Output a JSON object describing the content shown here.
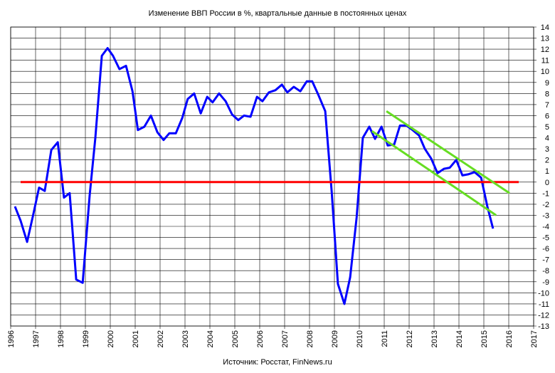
{
  "chart_data": {
    "type": "line",
    "title": "Изменение ВВП России в %, квартальные данные в постоянных ценах",
    "source": "Источник: Росстат, FinNews.ru",
    "xlim": [
      1996,
      2017
    ],
    "xticks": [
      1996,
      1997,
      1998,
      1999,
      2000,
      2001,
      2002,
      2003,
      2004,
      2005,
      2006,
      2007,
      2008,
      2009,
      2010,
      2011,
      2012,
      2013,
      2014,
      2015,
      2016,
      2017
    ],
    "ylim": [
      -13,
      14
    ],
    "yticks": [
      -13,
      -12,
      -11,
      -10,
      -9,
      -8,
      -7,
      -6,
      -5,
      -4,
      -3,
      -2,
      -1,
      0,
      1,
      2,
      3,
      4,
      5,
      6,
      7,
      8,
      9,
      10,
      11,
      12,
      13,
      14
    ],
    "grid": true,
    "y_axis_side": "right",
    "series": [
      {
        "color": "#0000ff",
        "x": [
          1996.17,
          1996.4,
          1996.66,
          1996.9,
          1997.14,
          1997.37,
          1997.63,
          1997.89,
          1998.14,
          1998.37,
          1998.63,
          1998.89,
          1999.17,
          1999.4,
          1999.66,
          1999.89,
          2000.11,
          2000.37,
          2000.63,
          2000.89,
          2001.11,
          2001.37,
          2001.63,
          2001.89,
          2002.14,
          2002.37,
          2002.63,
          2002.89,
          2003.11,
          2003.37,
          2003.63,
          2003.89,
          2004.11,
          2004.37,
          2004.63,
          2004.89,
          2005.14,
          2005.37,
          2005.63,
          2005.89,
          2006.11,
          2006.37,
          2006.63,
          2006.89,
          2007.11,
          2007.37,
          2007.63,
          2007.89,
          2008.11,
          2008.37,
          2008.63,
          2008.89,
          2009.14,
          2009.4,
          2009.63,
          2009.89,
          2010.14,
          2010.4,
          2010.63,
          2010.89,
          2011.14,
          2011.4,
          2011.63,
          2011.89,
          2012.14,
          2012.4,
          2012.63,
          2012.89,
          2013.14,
          2013.4,
          2013.63,
          2013.89,
          2014.14,
          2014.37,
          2014.63,
          2014.89,
          2015.14,
          2015.37
        ],
        "values": [
          -2.2,
          -3.5,
          -5.4,
          -3,
          -0.5,
          -0.8,
          2.9,
          3.6,
          -1.4,
          -1,
          -8.8,
          -9.1,
          -1.2,
          4,
          11.4,
          12.1,
          11.4,
          10.2,
          10.5,
          8.2,
          4.7,
          5,
          6,
          4.5,
          3.8,
          4.4,
          4.4,
          5.8,
          7.5,
          8,
          6.2,
          7.7,
          7.2,
          8,
          7.3,
          6.1,
          5.6,
          6,
          5.9,
          7.7,
          7.3,
          8.1,
          8.3,
          8.8,
          8.1,
          8.6,
          8.2,
          9.1,
          9.1,
          7.8,
          6.4,
          -0.9,
          -9.2,
          -11,
          -8.6,
          -3.2,
          4,
          5,
          3.9,
          5,
          3.3,
          3.4,
          5.1,
          5.1,
          4.7,
          4.2,
          3,
          2.1,
          0.8,
          1.2,
          1.3,
          2,
          0.6,
          0.7,
          0.9,
          0.4,
          -2.2,
          -4.2
        ]
      },
      {
        "color": "#ff0000",
        "x": [
          1996.4,
          2016.4
        ],
        "values": [
          0,
          0
        ]
      },
      {
        "color": "#66dd22",
        "x": [
          2011.09,
          2016.03
        ],
        "values": [
          6.4,
          -1
        ]
      },
      {
        "color": "#66dd22",
        "x": [
          2010.51,
          2015.49
        ],
        "values": [
          4.6,
          -3
        ]
      }
    ]
  }
}
